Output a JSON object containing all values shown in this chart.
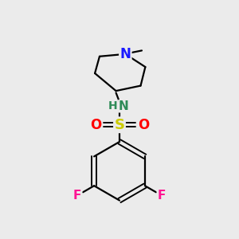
{
  "background_color": "#ebebeb",
  "atom_colors": {
    "C": "#000000",
    "N_blue": "#1a1aff",
    "N_teal": "#2e8b57",
    "S": "#cccc00",
    "O": "#ff0000",
    "F": "#ff1493",
    "H": "#2e8b57"
  },
  "bond_color": "#000000",
  "bond_width": 1.6,
  "figsize": [
    3.0,
    3.0
  ],
  "dpi": 100
}
